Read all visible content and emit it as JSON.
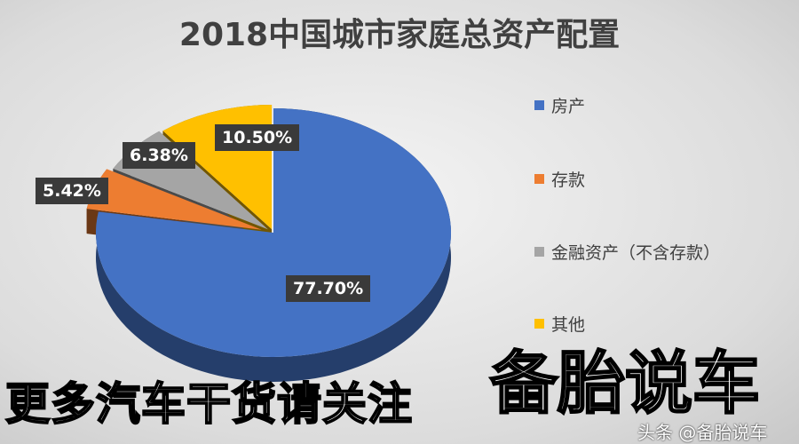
{
  "chart_data": {
    "type": "pie",
    "title": "2018中国城市家庭总资产配置",
    "categories": [
      "房产",
      "存款",
      "金融资产（不含存款）",
      "其他"
    ],
    "values": [
      77.7,
      5.42,
      6.38,
      10.5
    ],
    "labels": [
      "77.70%",
      "5.42%",
      "6.38%",
      "10.50%"
    ],
    "colors": [
      "#4472c4",
      "#ed7d31",
      "#a5a5a5",
      "#ffc000"
    ],
    "legend_position": "right",
    "style": "3d-exploded"
  },
  "overlay": {
    "banner": "更多汽车干货请关注",
    "brand": "备胎说车",
    "watermark": "头条 @备胎说车"
  }
}
